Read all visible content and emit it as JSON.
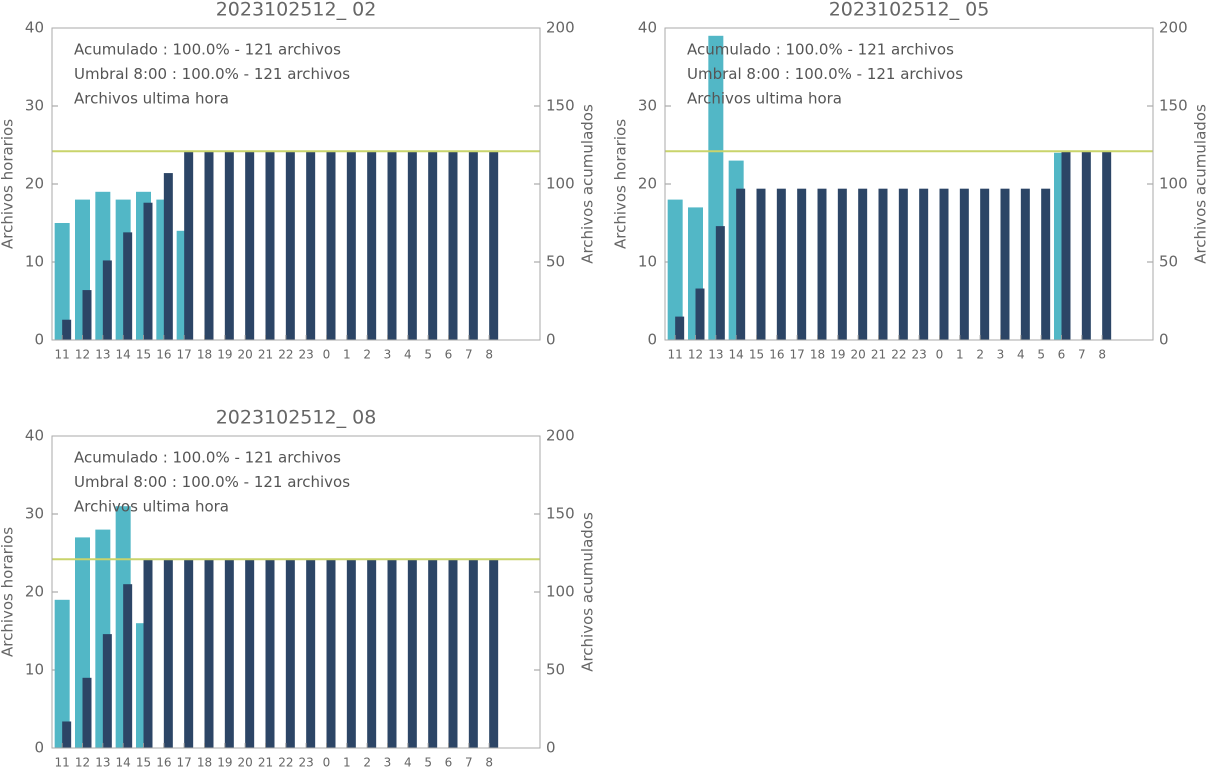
{
  "chart_data": [
    {
      "type": "bar",
      "title": "2023102512_ 02",
      "ylabel": "Archivos horarios",
      "y2label": "Archivos acumulados",
      "categories": [
        "11",
        "12",
        "13",
        "14",
        "15",
        "16",
        "17",
        "18",
        "19",
        "20",
        "21",
        "22",
        "23",
        "0",
        "1",
        "2",
        "3",
        "4",
        "5",
        "6",
        "7",
        "8"
      ],
      "series": [
        {
          "name": "Archivos ultima hora",
          "color": "#52b7c6",
          "values": [
            15,
            18,
            19,
            18,
            19,
            18,
            14,
            0,
            0,
            0,
            0,
            0,
            0,
            0,
            0,
            0,
            0,
            0,
            0,
            0,
            0,
            0
          ]
        },
        {
          "name": "Acumulado : 100.0% - 121 archivos",
          "color": "#2c4566",
          "axis": "y2",
          "values": [
            13,
            32,
            51,
            69,
            88,
            107,
            121,
            121,
            121,
            121,
            121,
            121,
            121,
            121,
            121,
            121,
            121,
            121,
            121,
            121,
            121,
            121
          ]
        }
      ],
      "threshold": {
        "label": "Umbral 8:00 : 100.0% - 121 archivos",
        "value": 121,
        "color": "#c9d46b",
        "axis": "y2"
      },
      "ylim": [
        0,
        40
      ],
      "yticks": [
        0,
        10,
        20,
        30,
        40
      ],
      "y2lim": [
        0,
        200
      ],
      "y2ticks": [
        0,
        50,
        100,
        150,
        200
      ]
    },
    {
      "type": "bar",
      "title": "2023102512_ 05",
      "ylabel": "Archivos horarios",
      "y2label": "Archivos acumulados",
      "categories": [
        "11",
        "12",
        "13",
        "14",
        "15",
        "16",
        "17",
        "18",
        "19",
        "20",
        "21",
        "22",
        "23",
        "0",
        "1",
        "2",
        "3",
        "4",
        "5",
        "6",
        "7",
        "8"
      ],
      "series": [
        {
          "name": "Archivos ultima hora",
          "color": "#52b7c6",
          "values": [
            18,
            17,
            39,
            23,
            0,
            0,
            0,
            0,
            0,
            0,
            0,
            0,
            0,
            0,
            0,
            0,
            0,
            0,
            0,
            24,
            0,
            0
          ]
        },
        {
          "name": "Acumulado : 100.0% - 121 archivos",
          "color": "#2c4566",
          "axis": "y2",
          "values": [
            15,
            33,
            73,
            97,
            97,
            97,
            97,
            97,
            97,
            97,
            97,
            97,
            97,
            97,
            97,
            97,
            97,
            97,
            97,
            121,
            121,
            121
          ]
        }
      ],
      "threshold": {
        "label": "Umbral 8:00 : 100.0% - 121 archivos",
        "value": 121,
        "color": "#c9d46b",
        "axis": "y2"
      },
      "ylim": [
        0,
        40
      ],
      "yticks": [
        0,
        10,
        20,
        30,
        40
      ],
      "y2lim": [
        0,
        200
      ],
      "y2ticks": [
        0,
        50,
        100,
        150,
        200
      ]
    },
    {
      "type": "bar",
      "title": "2023102512_ 08",
      "ylabel": "Archivos horarios",
      "y2label": "Archivos acumulados",
      "categories": [
        "11",
        "12",
        "13",
        "14",
        "15",
        "16",
        "17",
        "18",
        "19",
        "20",
        "21",
        "22",
        "23",
        "0",
        "1",
        "2",
        "3",
        "4",
        "5",
        "6",
        "7",
        "8"
      ],
      "series": [
        {
          "name": "Archivos ultima hora",
          "color": "#52b7c6",
          "values": [
            19,
            27,
            28,
            31,
            16,
            0,
            0,
            0,
            0,
            0,
            0,
            0,
            0,
            0,
            0,
            0,
            0,
            0,
            0,
            0,
            0,
            0
          ]
        },
        {
          "name": "Acumulado : 100.0% - 121 archivos",
          "color": "#2c4566",
          "axis": "y2",
          "values": [
            17,
            45,
            73,
            105,
            121,
            121,
            121,
            121,
            121,
            121,
            121,
            121,
            121,
            121,
            121,
            121,
            121,
            121,
            121,
            121,
            121,
            121
          ]
        }
      ],
      "threshold": {
        "label": "Umbral 8:00 : 100.0% - 121 archivos",
        "value": 121,
        "color": "#c9d46b",
        "axis": "y2"
      },
      "ylim": [
        0,
        40
      ],
      "yticks": [
        0,
        10,
        20,
        30,
        40
      ],
      "y2lim": [
        0,
        200
      ],
      "y2ticks": [
        0,
        50,
        100,
        150,
        200
      ]
    }
  ]
}
